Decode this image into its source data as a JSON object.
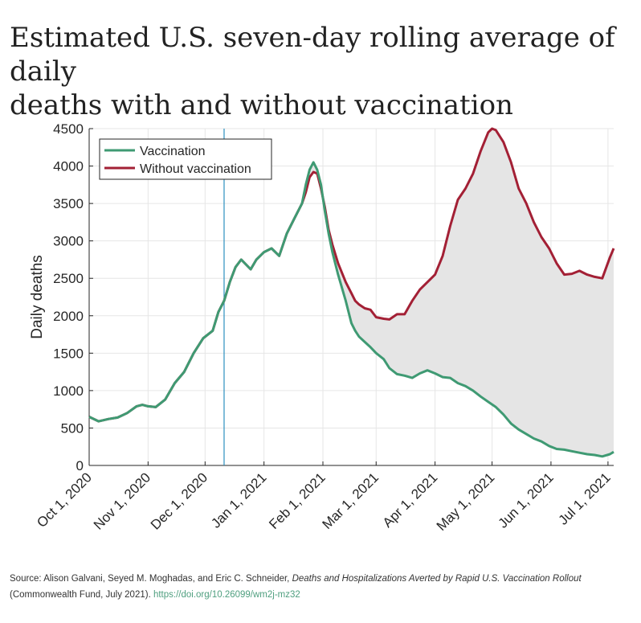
{
  "title_lines": [
    "Estimated U.S. seven-day rolling average of daily",
    "deaths with and without vaccination"
  ],
  "chart_data": {
    "type": "line",
    "title": "Estimated U.S. seven-day rolling average of daily deaths with and without vaccination",
    "xlabel": "",
    "ylabel": "Daily deaths",
    "ylim": [
      0,
      4500
    ],
    "yticks": [
      0,
      500,
      1000,
      1500,
      2000,
      2500,
      3000,
      3500,
      4000,
      4500
    ],
    "xlim_day": [
      0,
      276
    ],
    "xticks": [
      {
        "label": "Oct 1, 2020",
        "day": 0
      },
      {
        "label": "Nov 1, 2020",
        "day": 31
      },
      {
        "label": "Dec 1, 2020",
        "day": 61
      },
      {
        "label": "Jan 1, 2021",
        "day": 92
      },
      {
        "label": "Feb 1, 2021",
        "day": 123
      },
      {
        "label": "Mar 1, 2021",
        "day": 151
      },
      {
        "label": "Apr 1, 2021",
        "day": 182
      },
      {
        "label": "May 1, 2021",
        "day": 212
      },
      {
        "label": "Jun 1, 2021",
        "day": 243
      },
      {
        "label": "Jul 1, 2021",
        "day": 273
      }
    ],
    "grid": true,
    "legend_position": "top-left",
    "vline_day": 71,
    "fill_between": "gray shaded area between the two series",
    "series": [
      {
        "name": "Vaccination",
        "color": "#3f9a73",
        "days": [
          0,
          5,
          10,
          15,
          20,
          25,
          28,
          31,
          35,
          40,
          45,
          50,
          55,
          60,
          65,
          68,
          71,
          74,
          77,
          80,
          85,
          88,
          92,
          96,
          100,
          104,
          108,
          112,
          114,
          116,
          118,
          120,
          122,
          124,
          126,
          128,
          131,
          135,
          138,
          140,
          142,
          145,
          148,
          151,
          155,
          158,
          162,
          166,
          170,
          174,
          178,
          182,
          186,
          190,
          194,
          198,
          202,
          206,
          210,
          214,
          218,
          222,
          226,
          230,
          234,
          238,
          242,
          246,
          250,
          254,
          258,
          262,
          266,
          270,
          274,
          276
        ],
        "values": [
          650,
          590,
          620,
          640,
          700,
          790,
          810,
          790,
          780,
          880,
          1100,
          1250,
          1500,
          1700,
          1800,
          2050,
          2200,
          2450,
          2650,
          2750,
          2620,
          2750,
          2850,
          2900,
          2800,
          3100,
          3300,
          3500,
          3750,
          3950,
          4050,
          3950,
          3750,
          3400,
          3100,
          2850,
          2550,
          2200,
          1900,
          1800,
          1720,
          1650,
          1580,
          1500,
          1420,
          1300,
          1220,
          1200,
          1170,
          1230,
          1270,
          1230,
          1180,
          1170,
          1100,
          1060,
          1000,
          920,
          850,
          780,
          680,
          560,
          480,
          420,
          360,
          320,
          260,
          220,
          210,
          190,
          170,
          150,
          140,
          120,
          150,
          180
        ]
      },
      {
        "name": "Without vaccination",
        "color": "#a32035",
        "days": [
          0,
          5,
          10,
          15,
          20,
          25,
          28,
          31,
          35,
          40,
          45,
          50,
          55,
          60,
          65,
          68,
          71,
          74,
          77,
          80,
          85,
          88,
          92,
          96,
          100,
          104,
          108,
          112,
          114,
          116,
          118,
          120,
          122,
          124,
          126,
          128,
          131,
          135,
          138,
          140,
          142,
          145,
          148,
          151,
          155,
          158,
          162,
          166,
          170,
          174,
          178,
          182,
          186,
          190,
          194,
          198,
          202,
          206,
          210,
          212,
          214,
          218,
          222,
          226,
          230,
          234,
          238,
          242,
          246,
          250,
          254,
          258,
          262,
          266,
          270,
          274,
          276
        ],
        "values": [
          650,
          590,
          620,
          640,
          700,
          790,
          810,
          790,
          780,
          880,
          1100,
          1250,
          1500,
          1700,
          1800,
          2050,
          2200,
          2450,
          2650,
          2750,
          2620,
          2750,
          2850,
          2900,
          2800,
          3100,
          3300,
          3500,
          3650,
          3850,
          3920,
          3900,
          3700,
          3450,
          3150,
          2950,
          2700,
          2450,
          2300,
          2200,
          2150,
          2100,
          2080,
          1980,
          1960,
          1950,
          2020,
          2020,
          2200,
          2350,
          2450,
          2550,
          2800,
          3200,
          3550,
          3700,
          3900,
          4200,
          4450,
          4500,
          4480,
          4320,
          4050,
          3700,
          3500,
          3250,
          3050,
          2900,
          2700,
          2550,
          2560,
          2600,
          2550,
          2520,
          2500,
          2780,
          2900
        ]
      }
    ]
  },
  "source": {
    "prefix": "Source: Alison Galvani, Seyed M. Moghadas, and Eric C. Schneider, ",
    "italic": "Deaths and Hospitalizations Averted by Rapid U.S. Vaccination Rollout",
    "middle": " (Commonwealth Fund, July 2021). ",
    "link": "https://doi.org/10.26099/wm2j-mz32"
  }
}
